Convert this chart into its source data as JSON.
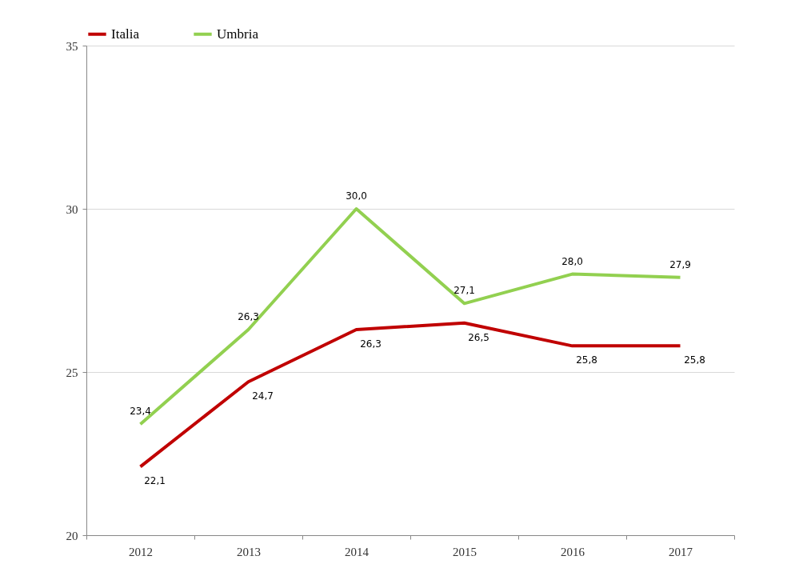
{
  "chart_data": {
    "type": "line",
    "categories": [
      "2012",
      "2013",
      "2014",
      "2015",
      "2016",
      "2017"
    ],
    "series": [
      {
        "name": "Italia",
        "color": "#c00000",
        "values": [
          22.1,
          24.7,
          26.3,
          26.5,
          25.8,
          25.8
        ],
        "value_labels": [
          "22,1",
          "24,7",
          "26,3",
          "26,5",
          "25,8",
          "25,8"
        ]
      },
      {
        "name": "Umbria",
        "color": "#92d050",
        "values": [
          23.4,
          26.3,
          30.0,
          27.1,
          28.0,
          27.9
        ],
        "value_labels": [
          "23,4",
          "26,3",
          "30,0",
          "27,1",
          "28,0",
          "27,9"
        ]
      }
    ],
    "ylim": [
      20,
      35
    ],
    "yticks": [
      20,
      25,
      30,
      35
    ],
    "grid": "y",
    "legend": "top",
    "marker": "none",
    "line_style": "solid"
  }
}
